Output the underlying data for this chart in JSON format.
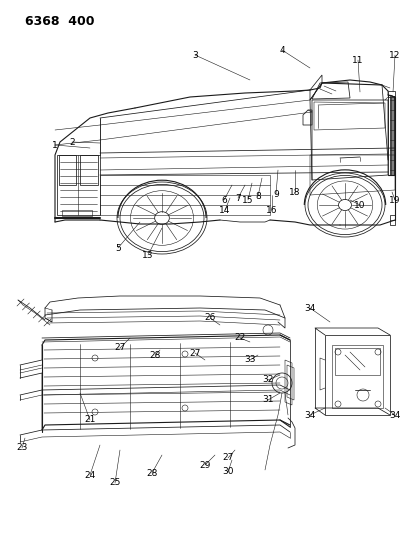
{
  "title": "6368  400",
  "background_color": "#ffffff",
  "text_color": "#000000",
  "title_fontsize": 9,
  "label_fontsize": 6.5,
  "fig_width": 4.1,
  "fig_height": 5.33,
  "dpi": 100,
  "line_color": "#1a1a1a",
  "lw_main": 0.8,
  "lw_thin": 0.4,
  "lw_med": 0.55
}
